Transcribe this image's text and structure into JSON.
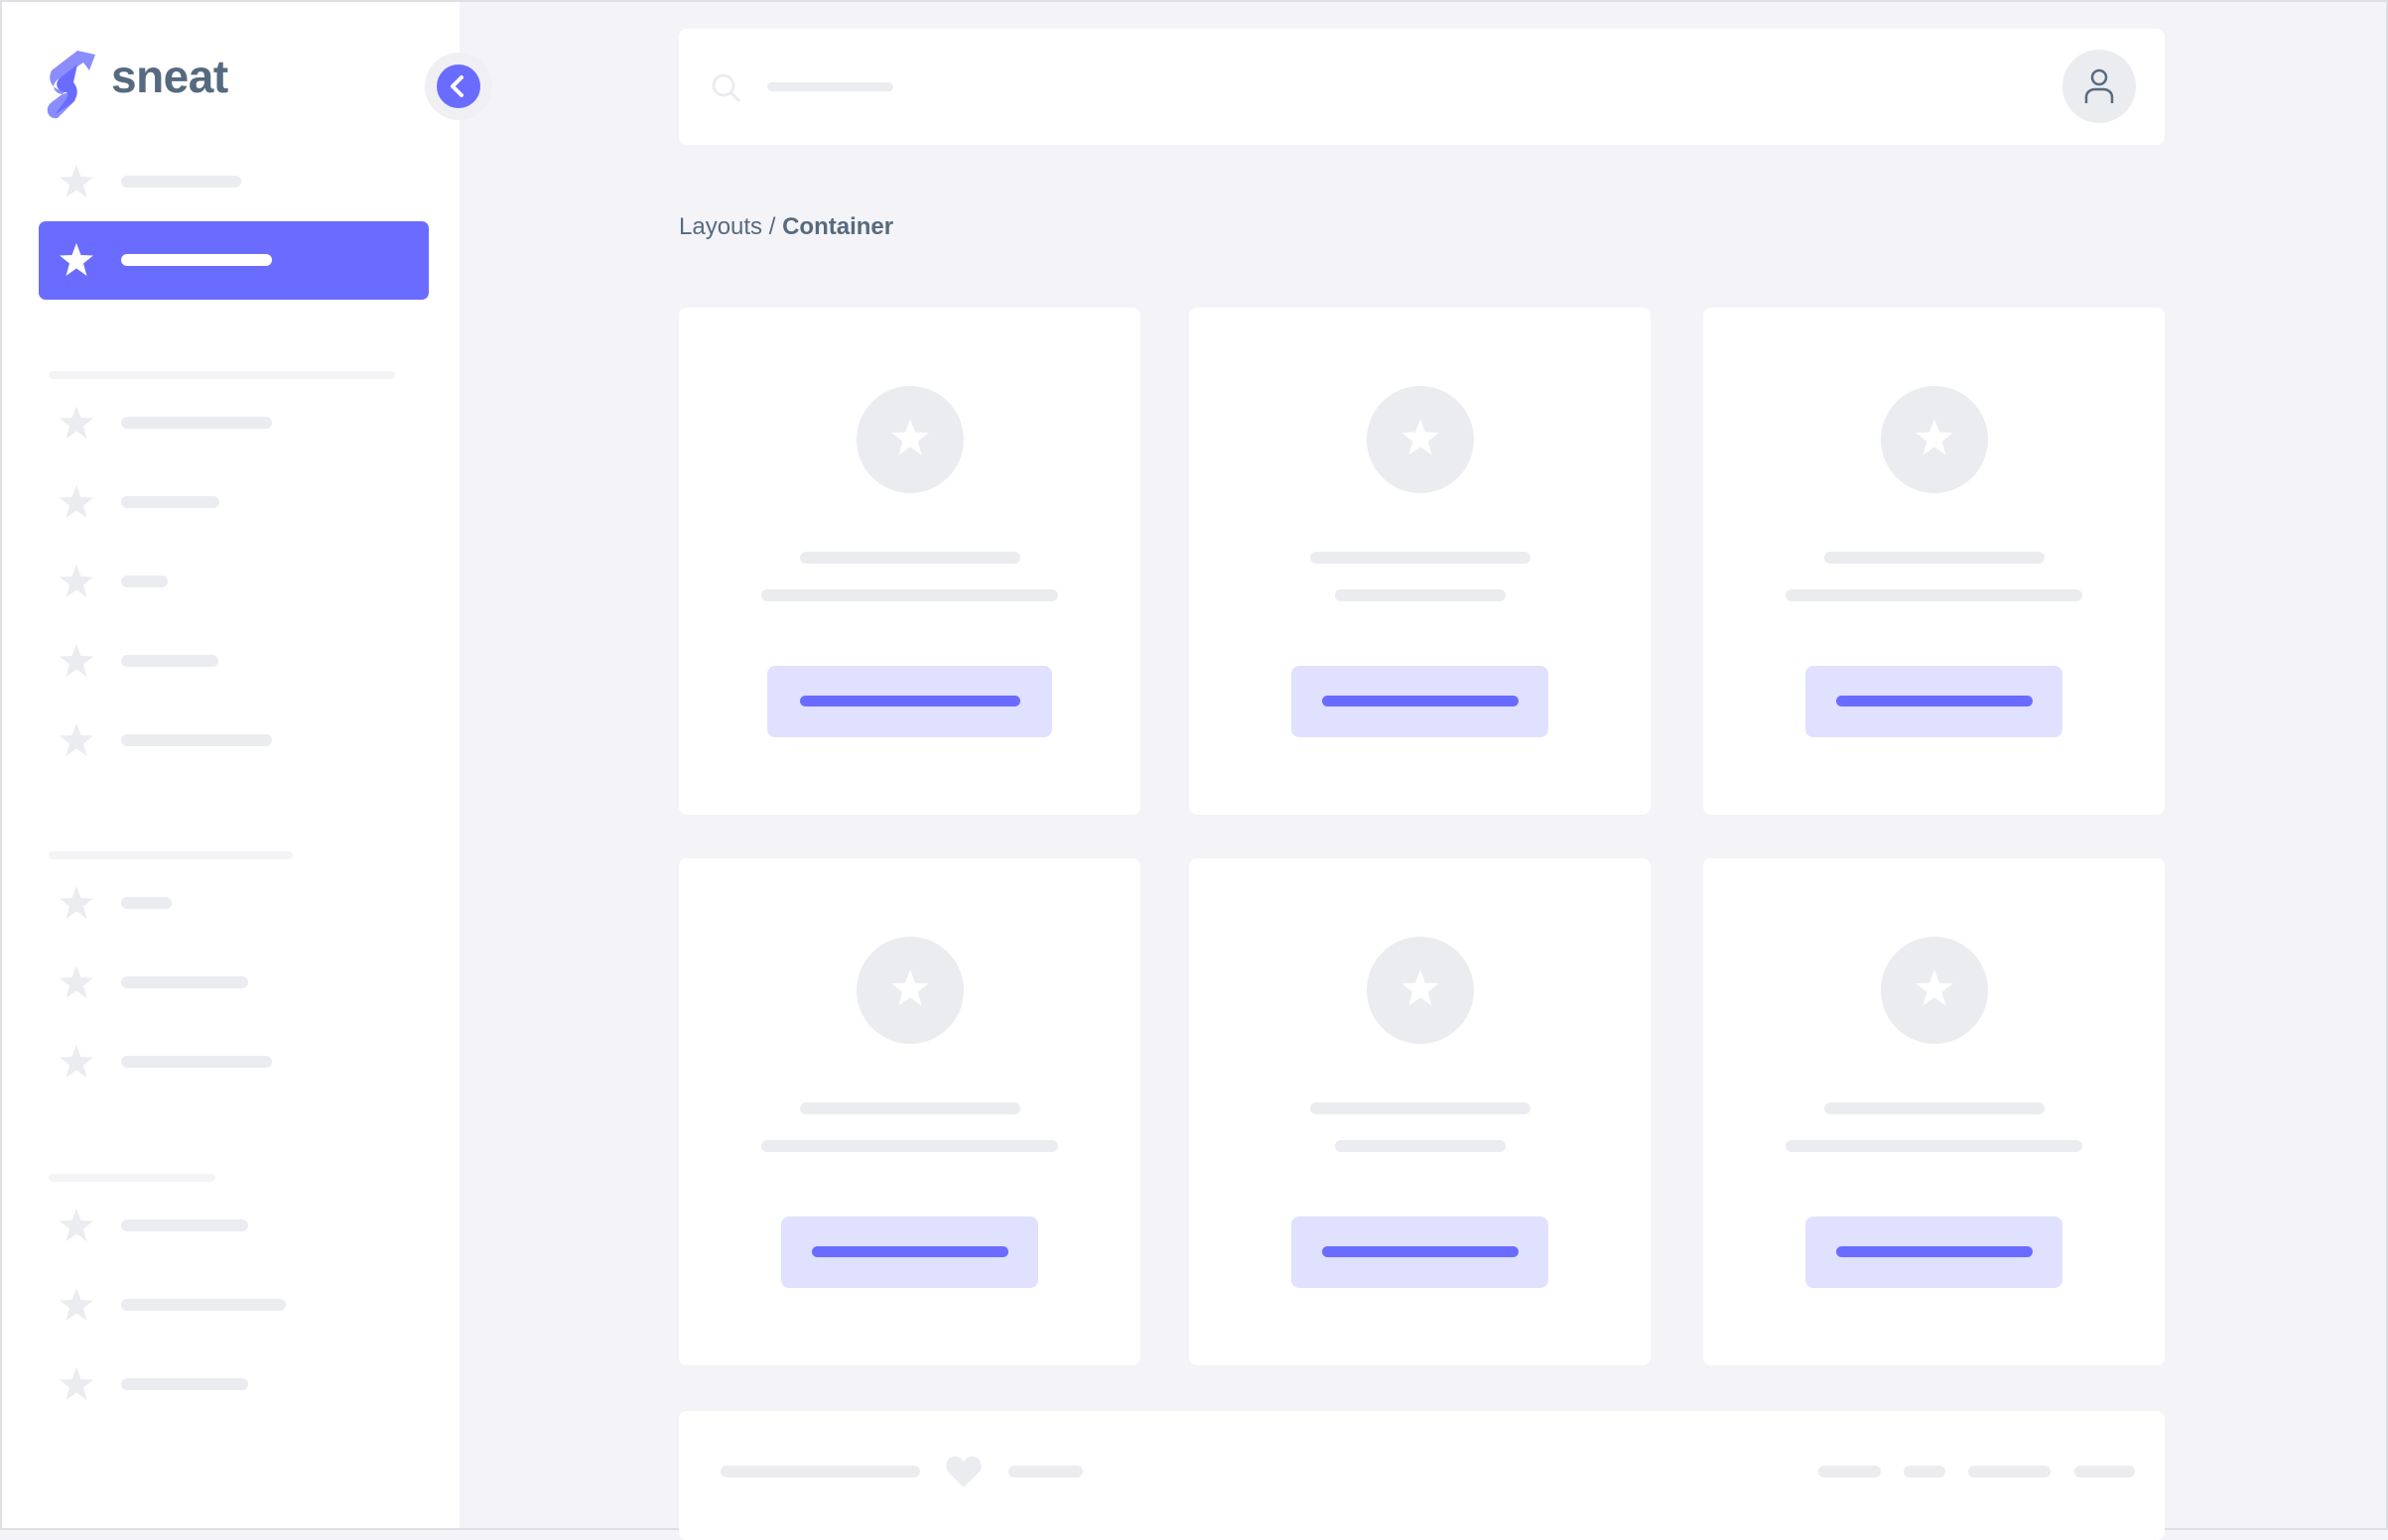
{
  "app": {
    "logo_text": "sneat",
    "accent_color": "#696cff"
  },
  "sidebar": {
    "collapse_icon": "chevron-left-icon",
    "item_icon": "star-icon",
    "active_index": 1
  },
  "header": {
    "search_icon": "search-icon",
    "avatar_icon": "user-icon"
  },
  "breadcrumb": {
    "parent": "Layouts",
    "separator": "/",
    "current": "Container"
  },
  "cards": {
    "count": 6,
    "icon": "star-icon"
  },
  "footer": {
    "icon": "heart-icon"
  }
}
